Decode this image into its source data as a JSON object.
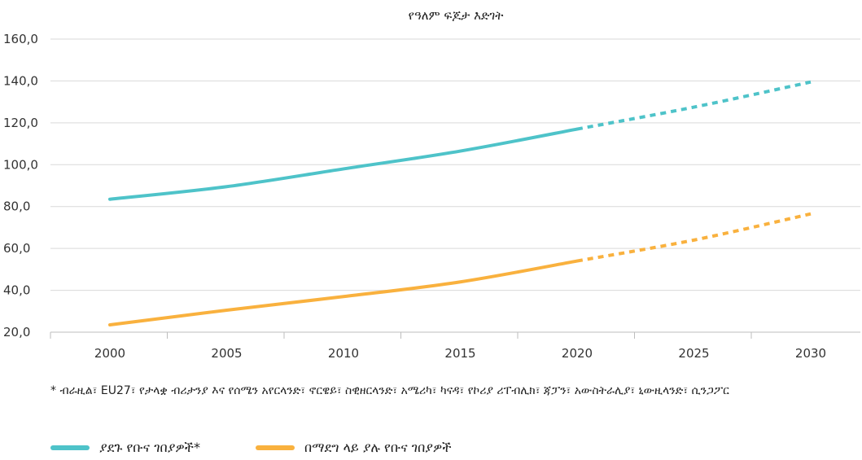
{
  "chart_data": {
    "type": "line",
    "title": "የዓለም ፍጆታ እድገት",
    "xlabel": "",
    "ylabel": "",
    "ylim": [
      20,
      160
    ],
    "y_ticks": [
      "160,0",
      "140,0",
      "120,0",
      "100,0",
      "80,0",
      "60,0",
      "40,0",
      "20,0"
    ],
    "x_ticks": [
      "2000",
      "2005",
      "2010",
      "2015",
      "2020",
      "2025",
      "2030"
    ],
    "grid": true,
    "legend_position": "bottom",
    "series": [
      {
        "name": "ያደጉ የቡና ገበያዎች*",
        "color": "#4ec3c9",
        "actual": [
          [
            2000,
            83.5
          ],
          [
            2005,
            89.5
          ],
          [
            2010,
            98.0
          ],
          [
            2015,
            106.5
          ],
          [
            2020,
            117.0
          ]
        ],
        "projected": [
          [
            2020,
            117.0
          ],
          [
            2025,
            127.5
          ],
          [
            2030,
            139.5
          ]
        ]
      },
      {
        "name": "በማደግ ላይ ያሉ የቡና ገበያዎች",
        "color": "#f9b13e",
        "actual": [
          [
            2000,
            23.5
          ],
          [
            2005,
            30.5
          ],
          [
            2010,
            37.0
          ],
          [
            2015,
            44.0
          ],
          [
            2020,
            54.0
          ]
        ],
        "projected": [
          [
            2020,
            54.0
          ],
          [
            2025,
            64.0
          ],
          [
            2030,
            76.5
          ]
        ]
      }
    ]
  },
  "footnote": "* ብራዚል፣ EU27፣ የታላቋ ብሪታንያ እና የሰሜን አየርላንድ፣ ኖርዌይ፣ ስዊዘርላንድ፣ አሜሪካ፣ ካናዳ፣ የኮሪያ ሪፐብሊክ፣ ጃፓን፣ አውስትራሊያ፣ ኒውዚላንድ፣ ሲንጋፖር"
}
